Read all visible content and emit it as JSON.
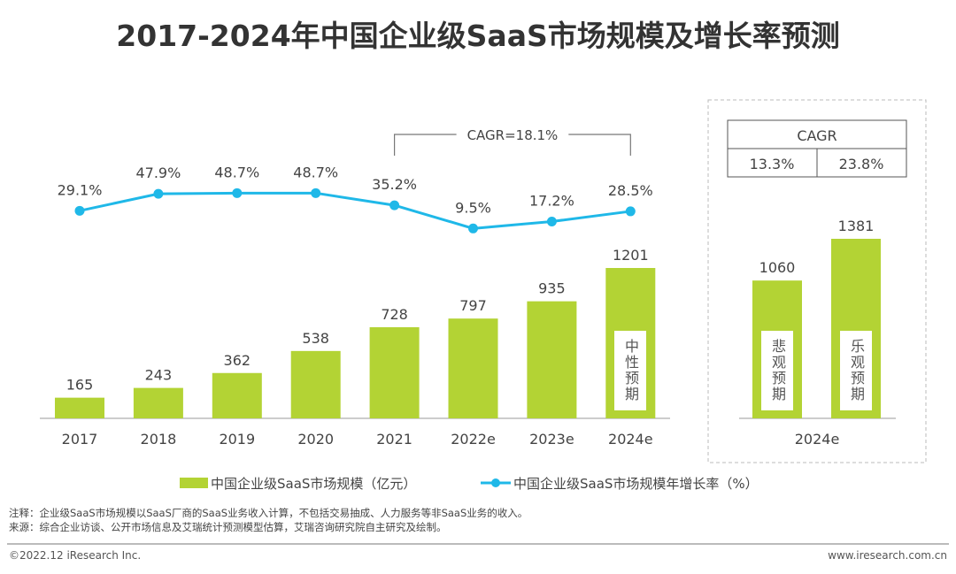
{
  "title": "2017-2024年中国企业级SaaS市场规模及增长率预测",
  "chart_data": [
    {
      "type": "bar+line",
      "categories": [
        "2017",
        "2018",
        "2019",
        "2020",
        "2021",
        "2022e",
        "2023e",
        "2024e"
      ],
      "series": [
        {
          "name": "中国企业级SaaS市场规模（亿元）",
          "type": "bar",
          "color": "#b3d334",
          "values": [
            165,
            243,
            362,
            538,
            728,
            797,
            935,
            1201
          ]
        },
        {
          "name": "中国企业级SaaS市场规模年增长率（%）",
          "type": "line",
          "color": "#1fb8e8",
          "values": [
            29.1,
            47.9,
            48.7,
            48.7,
            35.2,
            9.5,
            17.2,
            28.5
          ],
          "labels": [
            "29.1%",
            "47.9%",
            "48.7%",
            "48.7%",
            "35.2%",
            "9.5%",
            "17.2%",
            "28.5%"
          ]
        }
      ],
      "bar_inner_label": {
        "category": "2024e",
        "text": "中性预期"
      },
      "annotation": "CAGR=18.1%"
    },
    {
      "type": "bar",
      "categories": [
        "2024e"
      ],
      "bars": [
        {
          "value": 1060,
          "inner_label": "悲观预期"
        },
        {
          "value": 1381,
          "inner_label": "乐观预期"
        }
      ],
      "color": "#b3d334",
      "cagr_table": {
        "header": "CAGR",
        "values": [
          "13.3%",
          "23.8%"
        ]
      }
    }
  ],
  "legend": {
    "bar": "中国企业级SaaS市场规模（亿元）",
    "line": "中国企业级SaaS市场规模年增长率（%）"
  },
  "notes": {
    "note": "注释：企业级SaaS市场规模以SaaS厂商的SaaS业务收入计算，不包括交易抽成、人力服务等非SaaS业务的收入。",
    "source": "来源：综合企业访谈、公开市场信息及艾瑞统计预测模型估算，艾瑞咨询研究院自主研究及绘制。"
  },
  "footer": {
    "copyright": "©2022.12 iResearch Inc.",
    "website": "www.iresearch.com.cn"
  }
}
